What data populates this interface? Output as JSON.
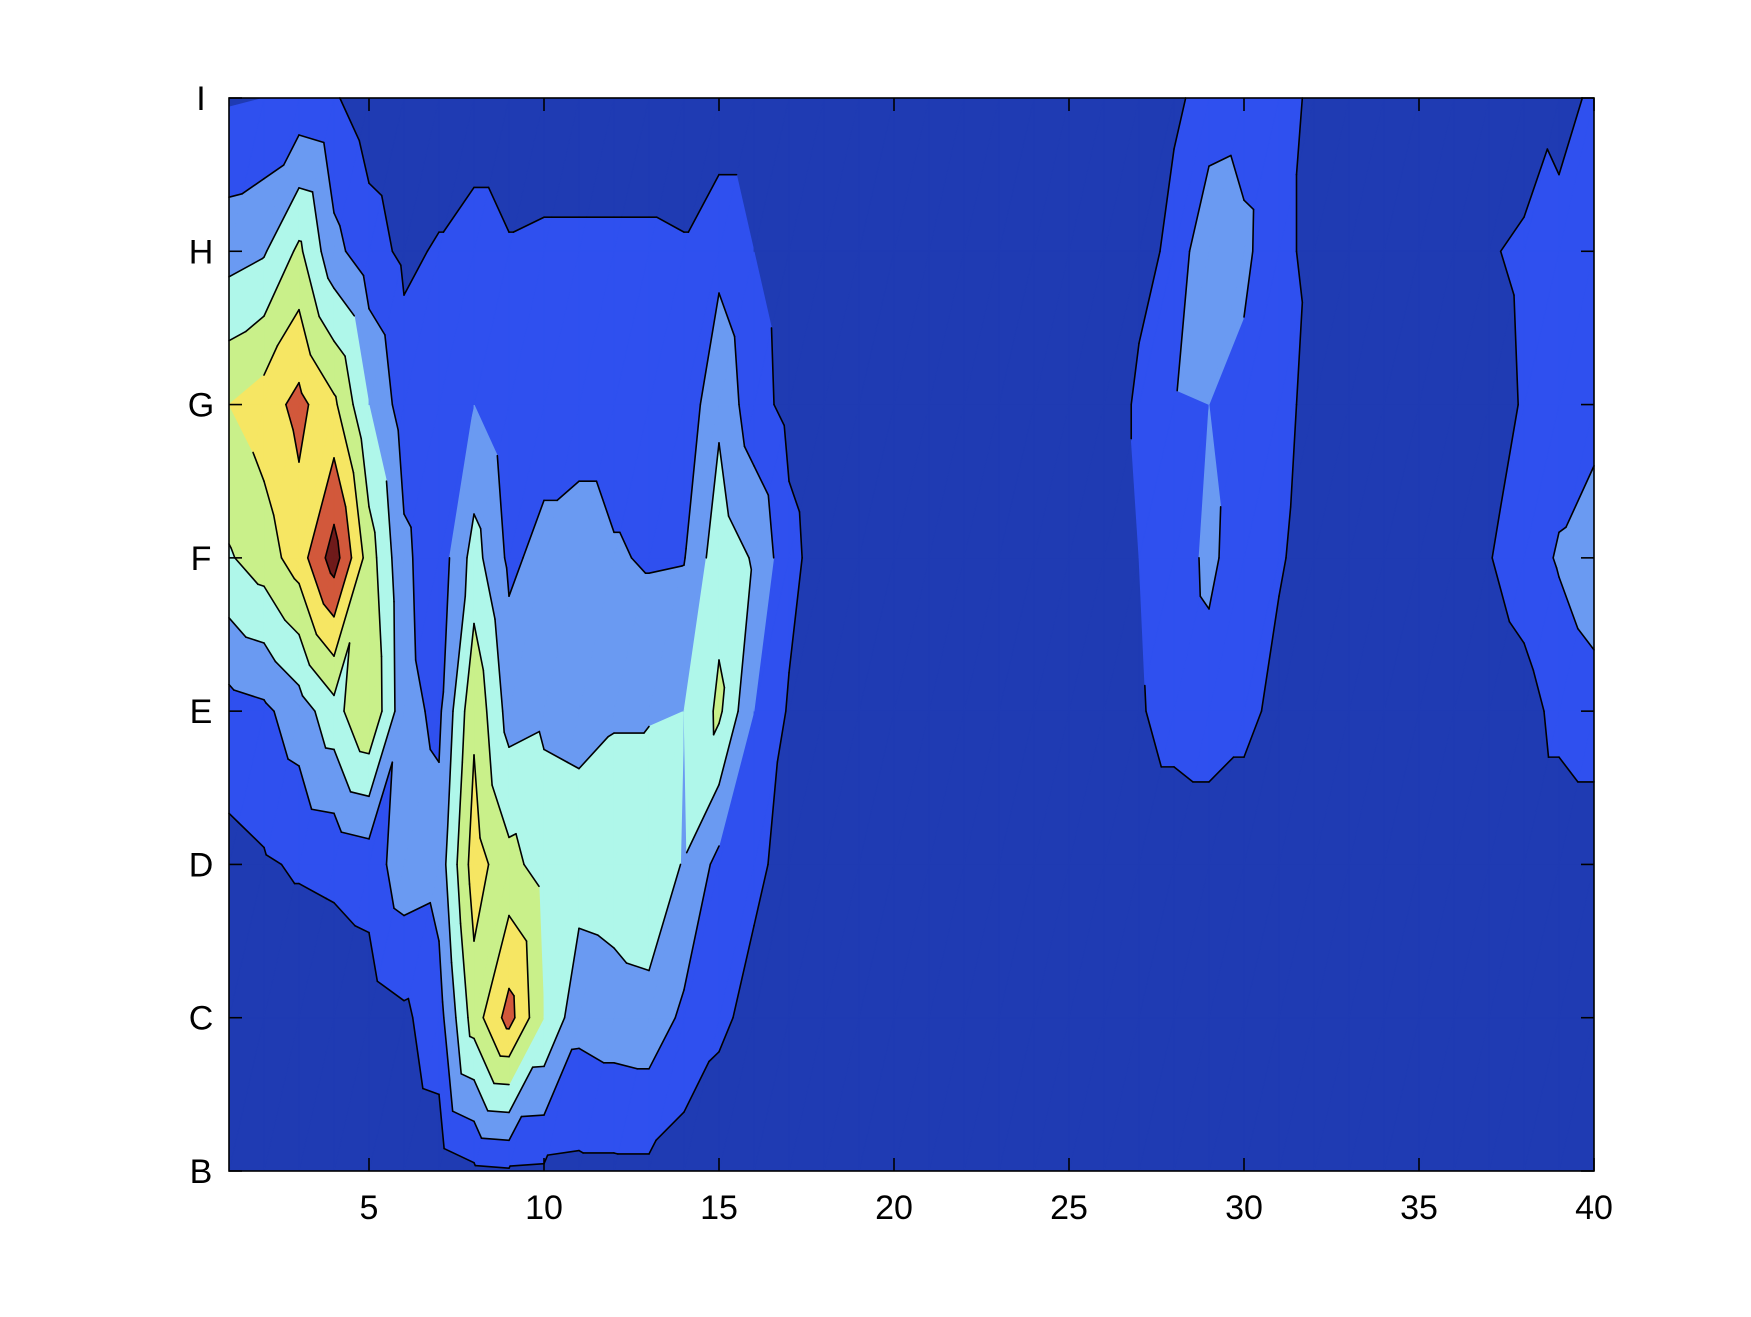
{
  "chart_data": {
    "type": "contour",
    "x": [
      1,
      2,
      3,
      4,
      5,
      6,
      7,
      8,
      9,
      10,
      11,
      12,
      13,
      14,
      15,
      16,
      17,
      18,
      19,
      20,
      21,
      22,
      23,
      24,
      25,
      26,
      27,
      28,
      29,
      30,
      31,
      32,
      33,
      34,
      35,
      36,
      37,
      38,
      39,
      40
    ],
    "y": [
      1,
      2,
      3,
      4,
      5,
      6,
      7,
      8
    ],
    "z": [
      [
        0.3,
        0.3,
        0.3,
        0.3,
        0.3,
        0.3,
        0.4,
        0.8,
        0.9,
        0.85,
        0.8,
        0.8,
        0.8,
        0.5,
        0.3,
        0.3,
        0.3,
        0.3,
        0.3,
        0.3,
        0.3,
        0.3,
        0.3,
        0.3,
        0.3,
        0.3,
        0.3,
        0.3,
        0.3,
        0.3,
        0.3,
        0.3,
        0.3,
        0.3,
        0.3,
        0.3,
        0.3,
        0.3,
        0.3,
        0.3
      ],
      [
        0.3,
        0.3,
        0.3,
        0.4,
        0.5,
        0.8,
        1.6,
        4.5,
        6.4,
        4.0,
        2.3,
        2.5,
        2.6,
        1.8,
        1.2,
        0.7,
        0.3,
        0.3,
        0.3,
        0.3,
        0.3,
        0.3,
        0.3,
        0.3,
        0.3,
        0.3,
        0.3,
        0.3,
        0.3,
        0.3,
        0.3,
        0.3,
        0.3,
        0.3,
        0.3,
        0.3,
        0.3,
        0.3,
        0.3,
        0.3
      ],
      [
        0.7,
        0.9,
        1.1,
        1.2,
        1.4,
        2.6,
        2.4,
        5.5,
        4.3,
        3.6,
        3.5,
        3.6,
        3.9,
        2.9,
        1.7,
        1.2,
        0.7,
        0.3,
        0.3,
        0.3,
        0.3,
        0.3,
        0.3,
        0.3,
        0.3,
        0.3,
        0.3,
        0.3,
        0.3,
        0.3,
        0.3,
        0.3,
        0.3,
        0.3,
        0.3,
        0.3,
        0.3,
        0.3,
        0.3,
        0.3
      ],
      [
        1.6,
        1.8,
        2.5,
        3.6,
        5.0,
        2.3,
        1.8,
        4.8,
        2.6,
        2.8,
        2.7,
        2.9,
        2.9,
        3.0,
        4.2,
        2.0,
        0.9,
        0.3,
        0.3,
        0.3,
        0.3,
        0.3,
        0.3,
        0.3,
        0.3,
        0.3,
        0.9,
        1.4,
        1.6,
        1.3,
        0.7,
        0.3,
        0.3,
        0.3,
        0.3,
        0.3,
        0.3,
        0.6,
        1.3,
        1.6
      ],
      [
        3.9,
        4.5,
        5.5,
        7.5,
        4.5,
        2.2,
        1.4,
        3.4,
        1.8,
        2.3,
        2.5,
        2.1,
        1.9,
        1.95,
        3.6,
        2.9,
        1.3,
        0.5,
        0.3,
        0.3,
        0.3,
        0.3,
        0.3,
        0.3,
        0.3,
        0.3,
        1.0,
        1.5,
        2.2,
        1.5,
        1.1,
        0.6,
        0.3,
        0.3,
        0.3,
        0.3,
        0.95,
        1.5,
        2.1,
        2.6
      ],
      [
        5.0,
        5.5,
        6.3,
        5.2,
        3.0,
        1.5,
        1.2,
        2.0,
        1.3,
        1.5,
        1.5,
        1.5,
        1.5,
        1.3,
        2.8,
        1.4,
        0.7,
        0.3,
        0.3,
        0.3,
        0.3,
        0.3,
        0.3,
        0.3,
        0.3,
        0.3,
        1.2,
        1.9,
        2.0,
        1.6,
        1.2,
        0.8,
        0.3,
        0.3,
        0.3,
        0.3,
        0.5,
        1.1,
        1.5,
        1.6
      ],
      [
        2.6,
        2.9,
        4.2,
        2.3,
        1.4,
        0.8,
        1.1,
        1.5,
        1.1,
        1.2,
        1.2,
        1.2,
        1.2,
        1.1,
        1.7,
        1.0,
        0.6,
        0.3,
        0.3,
        0.3,
        0.3,
        0.3,
        0.3,
        0.3,
        0.3,
        0.3,
        0.7,
        1.2,
        3.0,
        2.3,
        1.1,
        0.9,
        0.3,
        0.3,
        0.3,
        0.3,
        0.9,
        1.2,
        1.1,
        2.0
      ],
      [
        0.9,
        1.0,
        1.3,
        1.1,
        0.5,
        0.3,
        0.3,
        0.3,
        0.3,
        0.3,
        0.3,
        0.3,
        0.3,
        0.3,
        0.3,
        0.3,
        0.3,
        0.3,
        0.3,
        0.3,
        0.3,
        0.3,
        0.3,
        0.3,
        0.3,
        0.3,
        0.3,
        0.9,
        1.2,
        1.4,
        1.2,
        0.9,
        0.3,
        0.3,
        0.3,
        0.3,
        0.3,
        0.3,
        0.9,
        1.05
      ]
    ],
    "levels": [
      1,
      2,
      3,
      4,
      5,
      6,
      7
    ],
    "colors": [
      "#1f3bb3",
      "#2f50ef",
      "#6a9af2",
      "#aff7ea",
      "#c9f08a",
      "#f6e663",
      "#d2583b",
      "#6f1a1a"
    ],
    "xlim": [
      1,
      40
    ],
    "ylim": [
      1,
      8
    ],
    "xticks": [
      5,
      10,
      15,
      20,
      25,
      30,
      35,
      40
    ],
    "yticks": [
      {
        "value": 1,
        "label": "B"
      },
      {
        "value": 2,
        "label": "C"
      },
      {
        "value": 3,
        "label": "D"
      },
      {
        "value": 4,
        "label": "E"
      },
      {
        "value": 5,
        "label": "F"
      },
      {
        "value": 6,
        "label": "G"
      },
      {
        "value": 7,
        "label": "H"
      },
      {
        "value": 8,
        "label": "I"
      }
    ]
  }
}
